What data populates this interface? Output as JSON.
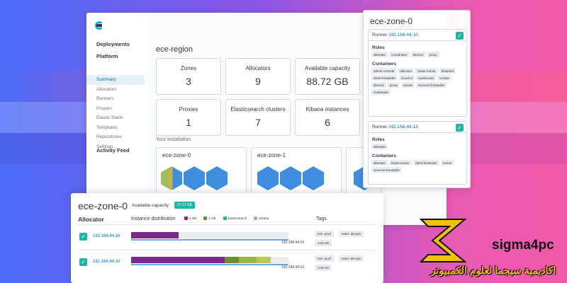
{
  "console": {
    "nav_sections": [
      "Deployments",
      "Platform"
    ],
    "nav_items": [
      "Summary",
      "Allocators",
      "Runners",
      "Proxies",
      "Elastic Stack",
      "Templates",
      "Repositories",
      "Settings"
    ],
    "activity": "Activity Feed",
    "region_title": "ece-region",
    "stats": [
      {
        "label": "Zones",
        "value": "3"
      },
      {
        "label": "Allocators",
        "value": "9"
      },
      {
        "label": "Available capacity",
        "value": "88.72 GB"
      },
      {
        "label": "Proxies",
        "value": "1"
      },
      {
        "label": "Elasticsearch clusters",
        "value": "7"
      },
      {
        "label": "Kibana instances",
        "value": "6"
      }
    ],
    "install_label": "Your installation",
    "zones": [
      "ece-zone-0",
      "ece-zone-1"
    ]
  },
  "runner_panel": {
    "title": "ece-zone-0",
    "runners": [
      {
        "label": "Runner",
        "ip": "192.168.44.10",
        "roles_title": "Roles",
        "roles": [
          "allocator",
          "coordinator",
          "director",
          "proxy"
        ],
        "containers_title": "Containers",
        "containers": [
          "admin-console",
          "allocator",
          "beats-runner",
          "blueprint",
          "client-forwarder",
          "cloud-ui",
          "constructor",
          "curator",
          "director",
          "proxy",
          "runner",
          "services-forwarder",
          "zookeeper"
        ]
      },
      {
        "label": "Runner",
        "ip": "192.168.44.13",
        "roles_title": "Roles",
        "roles": [
          "allocator"
        ],
        "containers_title": "Containers",
        "containers": [
          "allocator",
          "beats-runner",
          "client-forwarder",
          "runner",
          "services-forwarder"
        ]
      }
    ]
  },
  "zone_panel": {
    "title": "ece-zone-0",
    "capacity_label": "Available capacity:",
    "capacity_value": "27.57 GB",
    "col_allocator": "Allocator",
    "col_distribution": "Instance distribution",
    "col_tags": "Tags",
    "legend": [
      {
        "label": "4 GB",
        "color": "#7a2a8c"
      },
      {
        "label": "1 GB",
        "color": "#6b8f2e"
      },
      {
        "label": "Elasticsearch",
        "color": "#21b3a3"
      },
      {
        "label": "Kibana",
        "color": "#b99bd6"
      }
    ],
    "rows": [
      {
        "ip": "192.168.44.16",
        "bar_ip": "192.168.44.16",
        "tags": [
          "env: prod",
          "team: devops",
          "zone:00"
        ]
      },
      {
        "ip": "192.168.44.10",
        "bar_ip": "192.168.44.10",
        "tags": [
          "env: prod",
          "team: devops",
          "zone:00"
        ]
      }
    ]
  },
  "brand": {
    "name": "sigma4pc",
    "arabic": "اكاديمية سيجما لعلوم الكمبيوتر"
  }
}
